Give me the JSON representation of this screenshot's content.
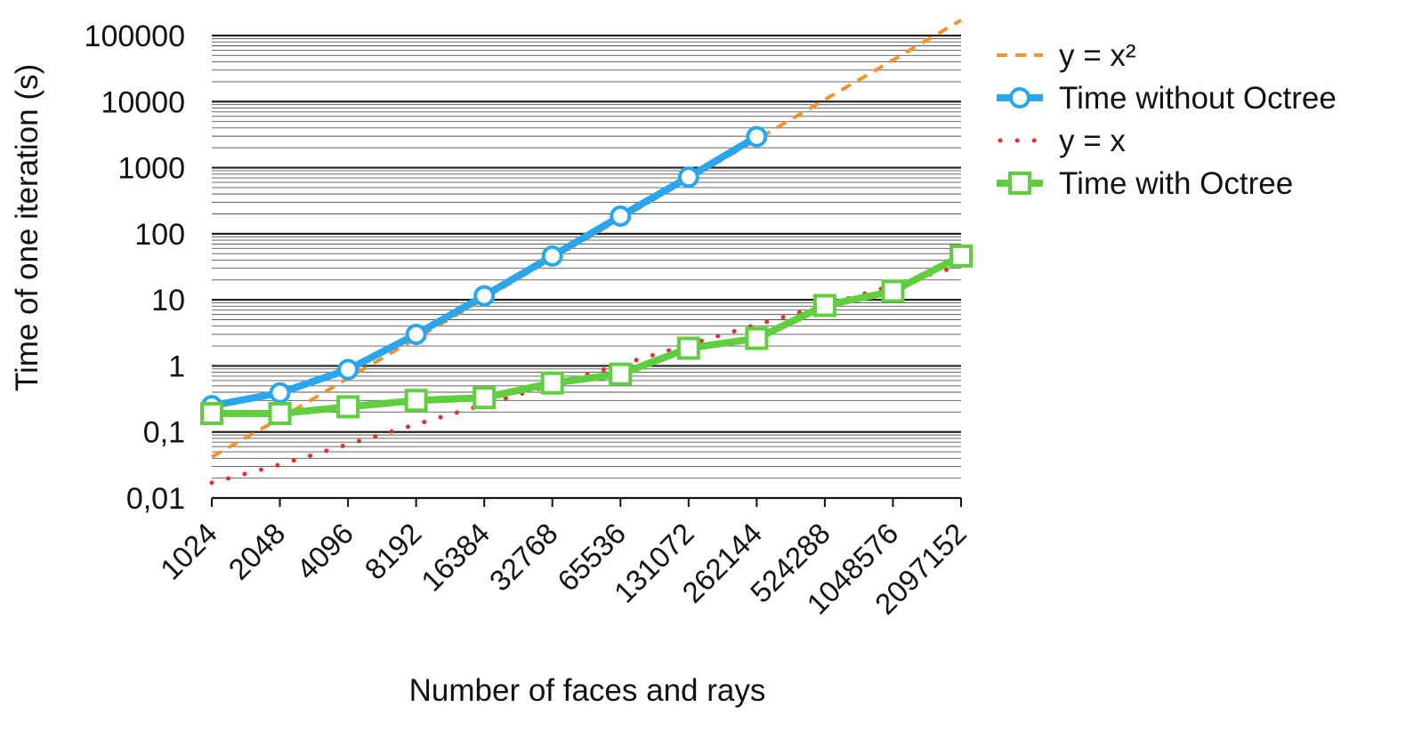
{
  "chart_data": {
    "type": "line",
    "title": "",
    "xlabel": "Number of faces and rays",
    "ylabel": "Time of one iteration (s)",
    "y_scale": "log",
    "ylim": [
      0.01,
      100000
    ],
    "y_tick_labels": [
      "0,01",
      "0,1",
      "1",
      "10",
      "100",
      "1000",
      "10000",
      "100000"
    ],
    "categories": [
      "1024",
      "2048",
      "4096",
      "8192",
      "16384",
      "32768",
      "65536",
      "131072",
      "262144",
      "524288",
      "1048576",
      "2097152"
    ],
    "grid": "horizontal major and minor lines",
    "legend_position": "right",
    "series": [
      {
        "name": "y = x²",
        "style": "dashed",
        "color": "#f5922b",
        "values": [
          0.042,
          0.16,
          0.65,
          2.6,
          10.4,
          42,
          167,
          668,
          2670,
          10700,
          42700,
          171000
        ]
      },
      {
        "name": "Time without Octree",
        "style": "solid-circle",
        "color": "#2aa6ec",
        "values": [
          0.25,
          0.39,
          0.88,
          3.0,
          11.5,
          46,
          185,
          720,
          2950,
          null,
          null,
          null
        ]
      },
      {
        "name": "y = x",
        "style": "dotted",
        "color": "#e53030",
        "values": [
          0.017,
          0.032,
          0.065,
          0.13,
          0.26,
          0.52,
          1.04,
          2.1,
          4.2,
          8.3,
          16.6,
          33
        ]
      },
      {
        "name": "Time with Octree",
        "style": "solid-square",
        "color": "#5fcf3e",
        "values": [
          0.19,
          0.19,
          0.24,
          0.3,
          0.33,
          0.55,
          0.75,
          1.85,
          2.6,
          8.2,
          13.5,
          46
        ]
      }
    ]
  }
}
